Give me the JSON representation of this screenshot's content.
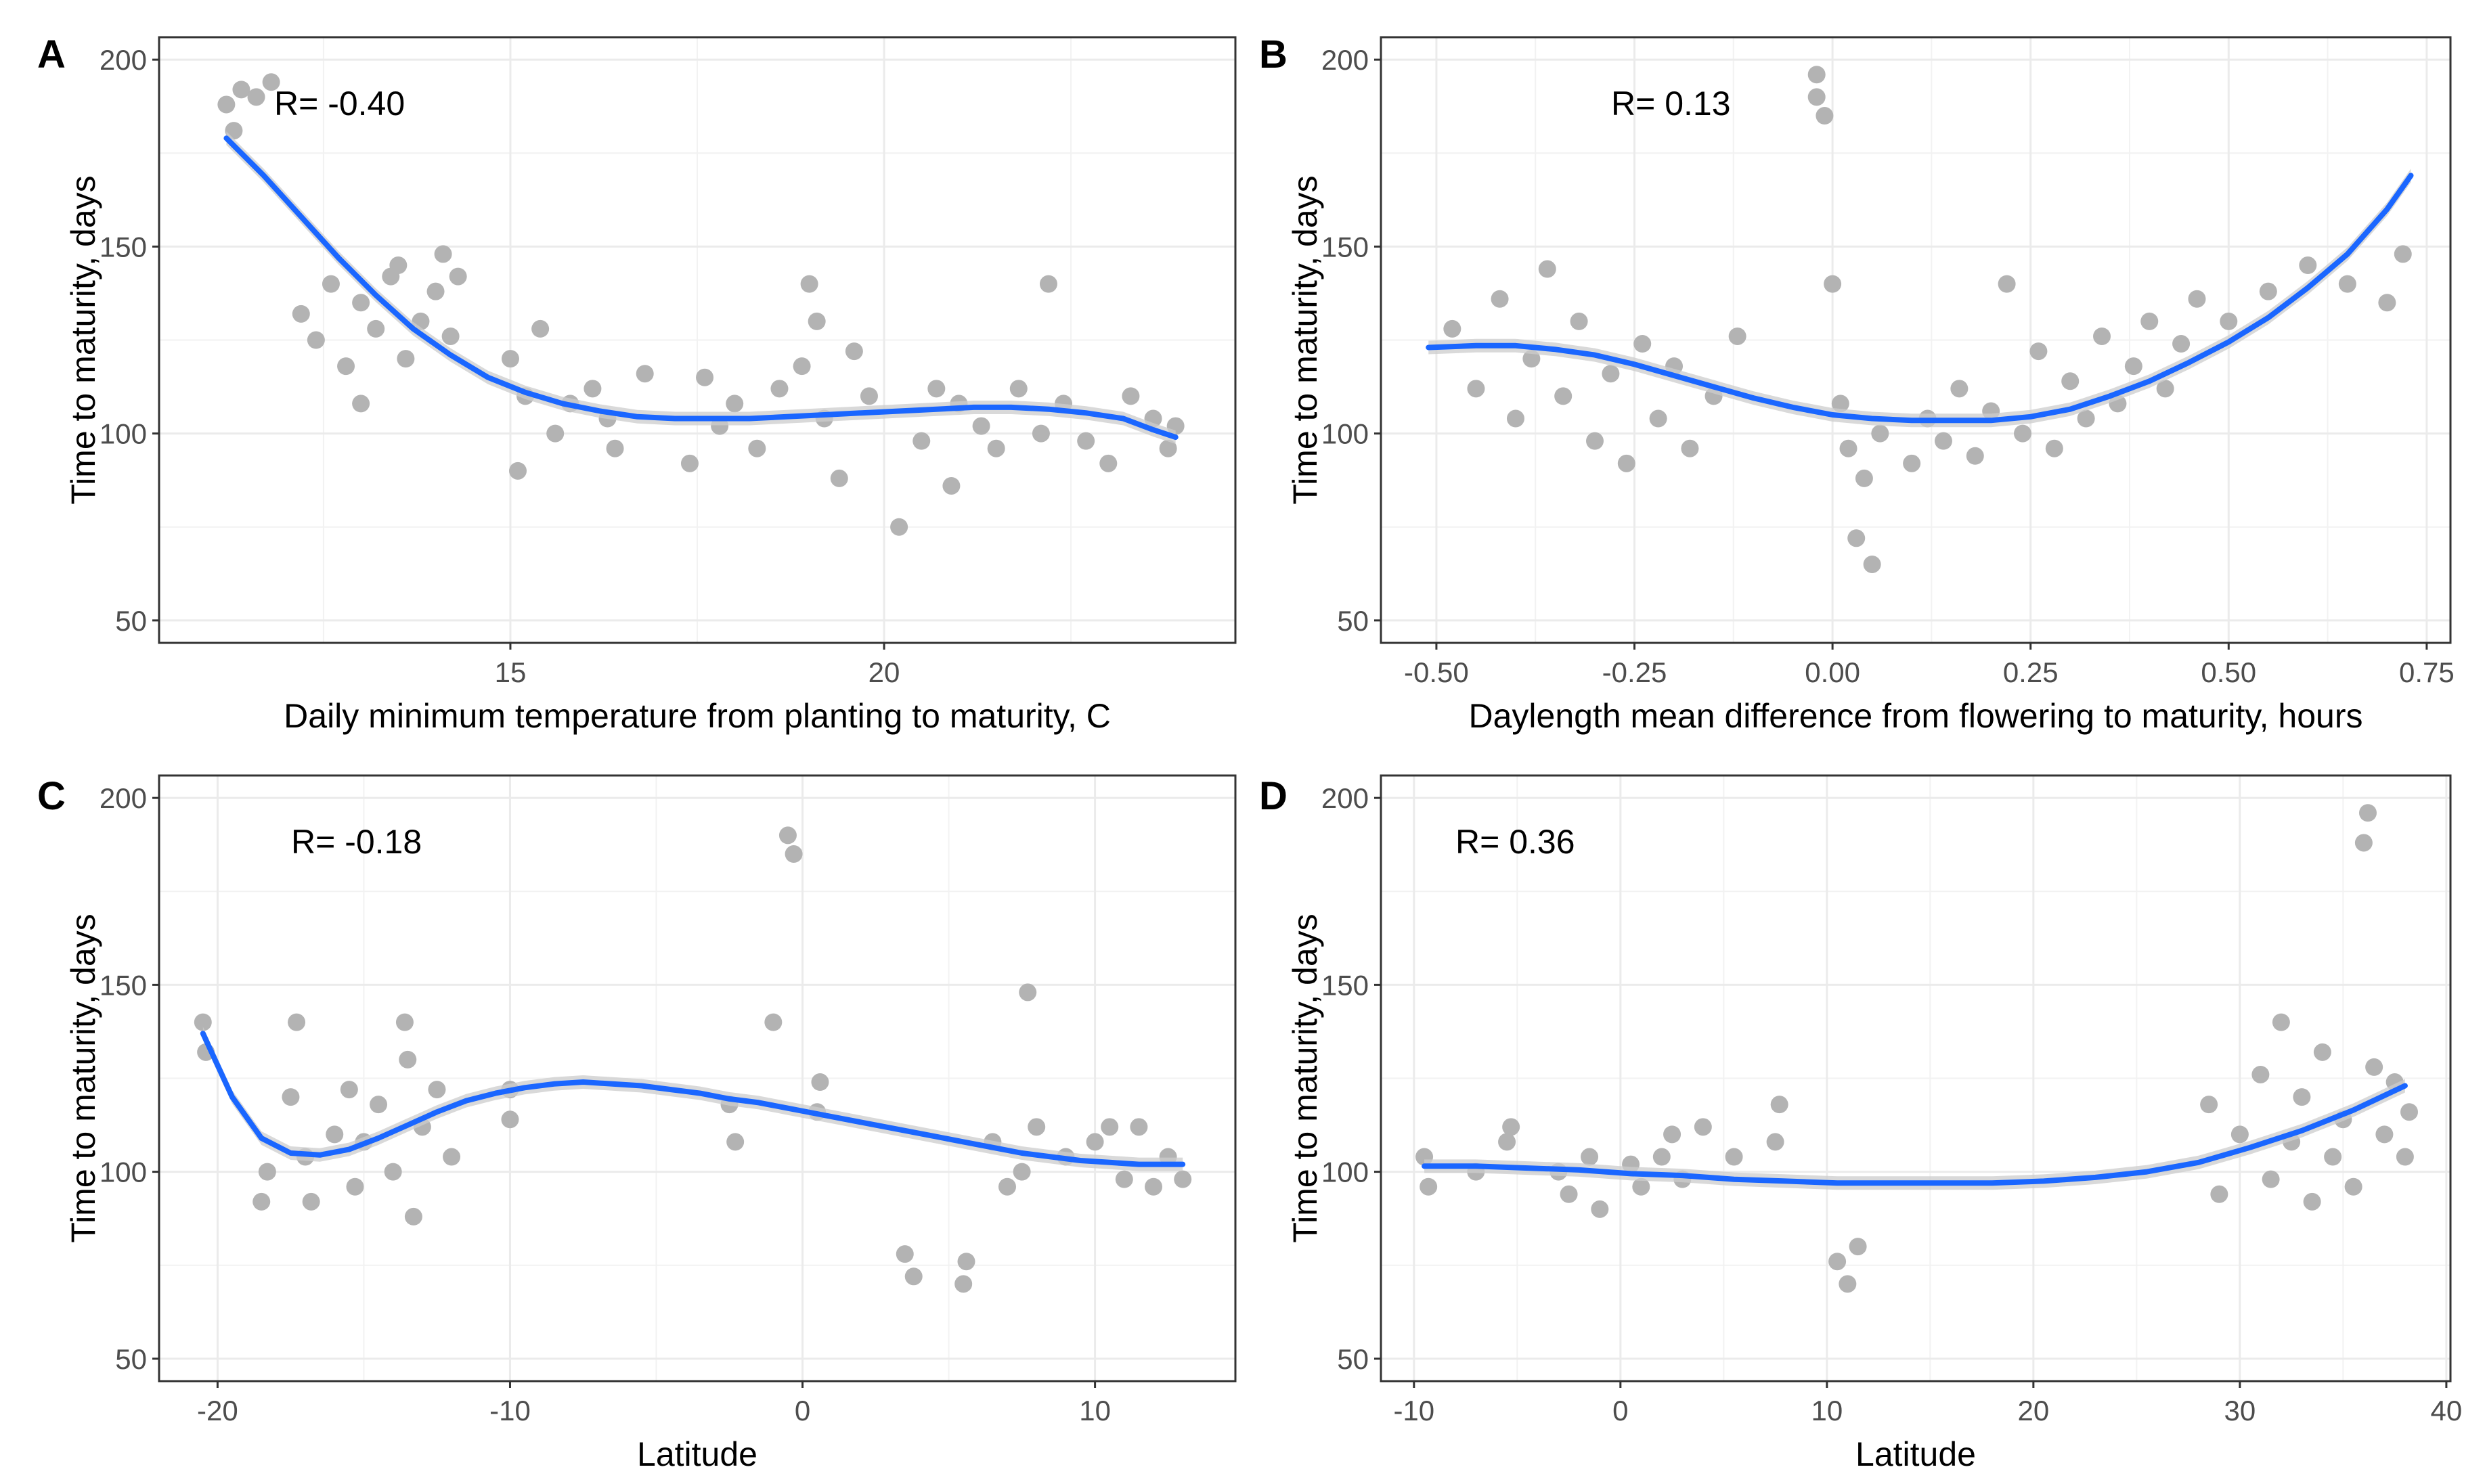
{
  "chart_data": [
    {
      "id": "A",
      "type": "scatter",
      "panel_tag": "A",
      "annotation": "R= -0.40",
      "xlabel": "Daily minimum temperature from planting to maturity, C",
      "ylabel": "Time to maturity, days",
      "xlim": [
        10.3,
        24.7
      ],
      "ylim": [
        44,
        206
      ],
      "x_ticks": [
        15,
        20
      ],
      "y_ticks": [
        50,
        100,
        150,
        200
      ],
      "grid": true,
      "point_color": "#b3b3b3",
      "line_color": "#1a66ff",
      "band_color": "#cccccc",
      "points": [
        [
          11.2,
          188
        ],
        [
          11.4,
          192
        ],
        [
          11.6,
          190
        ],
        [
          11.8,
          194
        ],
        [
          11.3,
          181
        ],
        [
          12.2,
          132
        ],
        [
          12.4,
          125
        ],
        [
          12.6,
          140
        ],
        [
          12.8,
          118
        ],
        [
          13.0,
          135
        ],
        [
          13.2,
          128
        ],
        [
          13.4,
          142
        ],
        [
          13.6,
          120
        ],
        [
          13.8,
          130
        ],
        [
          13.0,
          108
        ],
        [
          13.5,
          145
        ],
        [
          14.0,
          138
        ],
        [
          14.1,
          148
        ],
        [
          14.2,
          126
        ],
        [
          14.3,
          142
        ],
        [
          15.0,
          120
        ],
        [
          15.2,
          110
        ],
        [
          15.4,
          128
        ],
        [
          15.6,
          100
        ],
        [
          15.1,
          90
        ],
        [
          15.8,
          108
        ],
        [
          16.1,
          112
        ],
        [
          16.4,
          96
        ],
        [
          16.8,
          116
        ],
        [
          16.3,
          104
        ],
        [
          17.4,
          92
        ],
        [
          17.6,
          115
        ],
        [
          17.8,
          102
        ],
        [
          18.0,
          108
        ],
        [
          18.3,
          96
        ],
        [
          18.6,
          112
        ],
        [
          18.9,
          118
        ],
        [
          19.0,
          140
        ],
        [
          19.1,
          130
        ],
        [
          19.2,
          104
        ],
        [
          19.4,
          88
        ],
        [
          19.6,
          122
        ],
        [
          19.8,
          110
        ],
        [
          20.2,
          75
        ],
        [
          20.5,
          98
        ],
        [
          20.7,
          112
        ],
        [
          20.9,
          86
        ],
        [
          21.0,
          108
        ],
        [
          21.3,
          102
        ],
        [
          21.5,
          96
        ],
        [
          21.8,
          112
        ],
        [
          22.1,
          100
        ],
        [
          22.2,
          140
        ],
        [
          22.4,
          108
        ],
        [
          22.7,
          98
        ],
        [
          23.0,
          92
        ],
        [
          23.3,
          110
        ],
        [
          23.6,
          104
        ],
        [
          23.8,
          96
        ],
        [
          23.9,
          102
        ]
      ],
      "fit": {
        "x": [
          11.2,
          11.7,
          12.2,
          12.7,
          13.2,
          13.7,
          14.2,
          14.7,
          15.2,
          15.7,
          16.2,
          16.7,
          17.2,
          17.7,
          18.2,
          18.7,
          19.2,
          19.7,
          20.2,
          20.7,
          21.2,
          21.7,
          22.2,
          22.7,
          23.2,
          23.6,
          23.9
        ],
        "y": [
          179,
          169,
          158,
          147,
          137,
          128,
          121,
          115,
          111,
          108,
          106,
          104.5,
          104,
          104,
          104,
          104.5,
          105,
          105.5,
          106,
          106.5,
          107,
          107,
          106.5,
          105.5,
          104,
          101,
          99
        ]
      }
    },
    {
      "id": "B",
      "type": "scatter",
      "panel_tag": "B",
      "annotation": "R= 0.13",
      "xlabel": "Daylength mean difference from flowering to maturity, hours",
      "ylabel": "Time to maturity, days",
      "xlim": [
        -0.57,
        0.78
      ],
      "ylim": [
        44,
        206
      ],
      "x_ticks": [
        -0.5,
        -0.25,
        0.0,
        0.25,
        0.5,
        0.75
      ],
      "x_tick_labels": [
        "-0.50",
        "-0.25",
        "0.00",
        "0.25",
        "0.50",
        "0.75"
      ],
      "y_ticks": [
        50,
        100,
        150,
        200
      ],
      "grid": true,
      "point_color": "#b3b3b3",
      "line_color": "#1a66ff",
      "band_color": "#cccccc",
      "points": [
        [
          -0.48,
          128
        ],
        [
          -0.45,
          112
        ],
        [
          -0.42,
          136
        ],
        [
          -0.4,
          104
        ],
        [
          -0.38,
          120
        ],
        [
          -0.36,
          144
        ],
        [
          -0.34,
          110
        ],
        [
          -0.32,
          130
        ],
        [
          -0.3,
          98
        ],
        [
          -0.28,
          116
        ],
        [
          -0.26,
          92
        ],
        [
          -0.24,
          124
        ],
        [
          -0.22,
          104
        ],
        [
          -0.2,
          118
        ],
        [
          -0.18,
          96
        ],
        [
          -0.15,
          110
        ],
        [
          -0.12,
          126
        ],
        [
          -0.02,
          190
        ],
        [
          -0.01,
          185
        ],
        [
          -0.02,
          196
        ],
        [
          0.0,
          140
        ],
        [
          0.01,
          108
        ],
        [
          0.02,
          96
        ],
        [
          0.03,
          72
        ],
        [
          0.05,
          65
        ],
        [
          0.04,
          88
        ],
        [
          0.06,
          100
        ],
        [
          0.1,
          92
        ],
        [
          0.12,
          104
        ],
        [
          0.14,
          98
        ],
        [
          0.16,
          112
        ],
        [
          0.18,
          94
        ],
        [
          0.2,
          106
        ],
        [
          0.22,
          140
        ],
        [
          0.24,
          100
        ],
        [
          0.26,
          122
        ],
        [
          0.28,
          96
        ],
        [
          0.3,
          114
        ],
        [
          0.32,
          104
        ],
        [
          0.34,
          126
        ],
        [
          0.36,
          108
        ],
        [
          0.38,
          118
        ],
        [
          0.4,
          130
        ],
        [
          0.42,
          112
        ],
        [
          0.44,
          124
        ],
        [
          0.46,
          136
        ],
        [
          0.5,
          130
        ],
        [
          0.55,
          138
        ],
        [
          0.6,
          145
        ],
        [
          0.65,
          140
        ],
        [
          0.7,
          135
        ],
        [
          0.72,
          148
        ]
      ],
      "fit": {
        "x": [
          -0.51,
          -0.45,
          -0.4,
          -0.35,
          -0.3,
          -0.25,
          -0.2,
          -0.15,
          -0.1,
          -0.05,
          0.0,
          0.05,
          0.1,
          0.15,
          0.2,
          0.25,
          0.3,
          0.35,
          0.4,
          0.45,
          0.5,
          0.55,
          0.6,
          0.65,
          0.7,
          0.73
        ],
        "y": [
          123,
          123.5,
          123.5,
          122.5,
          121,
          118.5,
          115.5,
          112.5,
          109.5,
          107,
          105,
          104,
          103.5,
          103.5,
          103.5,
          104.5,
          106.5,
          110,
          114,
          119,
          124.5,
          131,
          139,
          148,
          160,
          169
        ]
      }
    },
    {
      "id": "C",
      "type": "scatter",
      "panel_tag": "C",
      "annotation": "R= -0.18",
      "xlabel": "Latitude",
      "ylabel": "Time to maturity, days",
      "xlim": [
        -22.0,
        14.8
      ],
      "ylim": [
        44,
        206
      ],
      "x_ticks": [
        -20,
        -10,
        0,
        10
      ],
      "y_ticks": [
        50,
        100,
        150,
        200
      ],
      "grid": true,
      "point_color": "#b3b3b3",
      "line_color": "#1a66ff",
      "band_color": "#cccccc",
      "points": [
        [
          -20.5,
          140
        ],
        [
          -20.4,
          132
        ],
        [
          -18.5,
          92
        ],
        [
          -18.3,
          100
        ],
        [
          -17.5,
          120
        ],
        [
          -17.3,
          140
        ],
        [
          -17.0,
          104
        ],
        [
          -16.8,
          92
        ],
        [
          -16.0,
          110
        ],
        [
          -15.5,
          122
        ],
        [
          -15.3,
          96
        ],
        [
          -15.0,
          108
        ],
        [
          -14.5,
          118
        ],
        [
          -14.0,
          100
        ],
        [
          -13.6,
          140
        ],
        [
          -13.5,
          130
        ],
        [
          -13.3,
          88
        ],
        [
          -13.0,
          112
        ],
        [
          -12.5,
          122
        ],
        [
          -12.0,
          104
        ],
        [
          -10.0,
          122
        ],
        [
          -10.0,
          114
        ],
        [
          -2.5,
          118
        ],
        [
          -2.3,
          108
        ],
        [
          -1.0,
          140
        ],
        [
          -0.5,
          190
        ],
        [
          -0.3,
          185
        ],
        [
          0.5,
          116
        ],
        [
          0.6,
          124
        ],
        [
          3.5,
          78
        ],
        [
          3.8,
          72
        ],
        [
          5.5,
          70
        ],
        [
          5.6,
          76
        ],
        [
          6.5,
          108
        ],
        [
          7.0,
          96
        ],
        [
          7.5,
          100
        ],
        [
          7.7,
          148
        ],
        [
          8.0,
          112
        ],
        [
          9.0,
          104
        ],
        [
          10.0,
          108
        ],
        [
          10.5,
          112
        ],
        [
          11.0,
          98
        ],
        [
          11.5,
          112
        ],
        [
          12.0,
          96
        ],
        [
          12.5,
          104
        ],
        [
          13.0,
          98
        ]
      ],
      "fit": {
        "x": [
          -20.5,
          -19.5,
          -18.5,
          -17.5,
          -16.5,
          -15.5,
          -14.5,
          -13.5,
          -12.5,
          -11.5,
          -10.5,
          -9.5,
          -8.5,
          -7.5,
          -6.5,
          -5.5,
          -4.5,
          -3.5,
          -2.5,
          -1.5,
          -0.5,
          0.5,
          1.5,
          2.5,
          3.5,
          4.5,
          5.5,
          6.5,
          7.5,
          8.5,
          9.5,
          10.5,
          11.5,
          12.5,
          13.0
        ],
        "y": [
          137,
          120,
          109,
          105,
          104.5,
          106,
          109,
          112.5,
          116,
          119,
          121,
          122.5,
          123.5,
          124,
          123.5,
          123,
          122,
          121,
          119.5,
          118.5,
          117,
          115.5,
          114,
          112.5,
          111,
          109.5,
          108,
          106.5,
          105,
          104,
          103,
          102.5,
          102,
          102,
          102
        ]
      }
    },
    {
      "id": "D",
      "type": "scatter",
      "panel_tag": "D",
      "annotation": "R= 0.36",
      "xlabel": "Latitude",
      "ylabel": "Time to maturity, days",
      "xlim": [
        -11.6,
        40.2
      ],
      "ylim": [
        44,
        206
      ],
      "x_ticks": [
        -10,
        0,
        10,
        20,
        30,
        40
      ],
      "y_ticks": [
        50,
        100,
        150,
        200
      ],
      "grid": true,
      "point_color": "#b3b3b3",
      "line_color": "#1a66ff",
      "band_color": "#cccccc",
      "points": [
        [
          -9.5,
          104
        ],
        [
          -9.3,
          96
        ],
        [
          -7.0,
          100
        ],
        [
          -5.5,
          108
        ],
        [
          -5.3,
          112
        ],
        [
          -3.0,
          100
        ],
        [
          -2.5,
          94
        ],
        [
          -1.5,
          104
        ],
        [
          -1.0,
          90
        ],
        [
          0.5,
          102
        ],
        [
          1.0,
          96
        ],
        [
          2.0,
          104
        ],
        [
          2.5,
          110
        ],
        [
          3.0,
          98
        ],
        [
          4.0,
          112
        ],
        [
          5.5,
          104
        ],
        [
          7.5,
          108
        ],
        [
          7.7,
          118
        ],
        [
          10.5,
          76
        ],
        [
          11.0,
          70
        ],
        [
          11.5,
          80
        ],
        [
          28.5,
          118
        ],
        [
          29.0,
          94
        ],
        [
          30.0,
          110
        ],
        [
          31.0,
          126
        ],
        [
          31.5,
          98
        ],
        [
          32.0,
          140
        ],
        [
          32.5,
          108
        ],
        [
          33.0,
          120
        ],
        [
          33.5,
          92
        ],
        [
          34.0,
          132
        ],
        [
          34.5,
          104
        ],
        [
          35.0,
          114
        ],
        [
          35.5,
          96
        ],
        [
          36.0,
          188
        ],
        [
          36.2,
          196
        ],
        [
          36.5,
          128
        ],
        [
          37.0,
          110
        ],
        [
          37.5,
          124
        ],
        [
          38.0,
          104
        ],
        [
          38.2,
          116
        ]
      ],
      "fit": {
        "x": [
          -9.5,
          -7,
          -4.5,
          -2,
          0.5,
          3,
          5.5,
          8,
          10.5,
          13,
          15.5,
          18,
          20.5,
          23,
          25.5,
          28,
          30.5,
          33,
          35.5,
          38
        ],
        "y": [
          101.5,
          101.5,
          101,
          100.5,
          99.5,
          99,
          98,
          97.5,
          97,
          97,
          97,
          97,
          97.5,
          98.5,
          100,
          102.5,
          106.5,
          111,
          116.5,
          123
        ]
      }
    }
  ]
}
